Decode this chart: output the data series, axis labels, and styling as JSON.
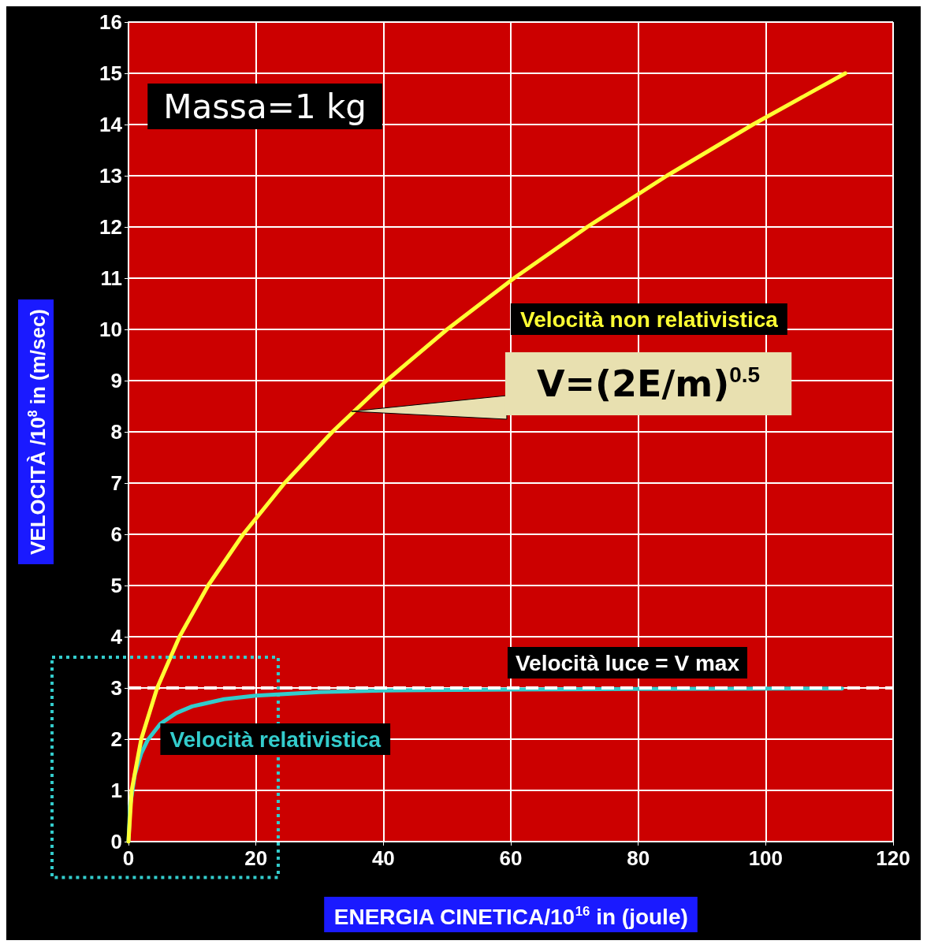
{
  "chart_data": {
    "type": "line",
    "xlabel": "ENERGIA CINETICA/10$^{16}$ in (joule)",
    "ylabel": "VELOCITÀ /10$^{8}$ in (m/sec)",
    "xlim": [
      0,
      120
    ],
    "xticks": [
      0,
      20,
      40,
      60,
      80,
      100,
      120
    ],
    "ylim": [
      0,
      16
    ],
    "yticks": [
      0,
      1,
      2,
      3,
      4,
      5,
      6,
      7,
      8,
      9,
      10,
      11,
      12,
      13,
      14,
      15,
      16
    ],
    "grid": true,
    "legend": false,
    "marker": "none",
    "series": [
      {
        "name": "Velocità non relativistica",
        "color": "#ffff33",
        "x": [
          0,
          0.5,
          2,
          4.5,
          8,
          12.5,
          18,
          24.5,
          32,
          40.5,
          50,
          60.5,
          72,
          84.5,
          98,
          112.5
        ],
        "values": [
          0,
          1,
          2,
          3,
          4,
          5,
          6,
          7,
          8,
          9,
          10,
          11,
          12,
          13,
          14,
          15
        ]
      },
      {
        "name": "Velocità relativistica",
        "color": "#33cccc",
        "x": [
          0,
          0.25,
          1,
          2,
          3,
          5,
          7.5,
          10,
          15,
          20,
          30,
          40,
          60,
          80,
          112
        ],
        "values": [
          0,
          0.69,
          1.31,
          1.72,
          1.98,
          2.3,
          2.51,
          2.64,
          2.78,
          2.85,
          2.92,
          2.95,
          2.97,
          2.98,
          2.99
        ]
      }
    ],
    "ref_lines": [
      {
        "axis": "y",
        "value": 3,
        "label": "Velocità luce = V max",
        "color": "#ffffff",
        "line_style": "dashed"
      }
    ],
    "annotations": [
      "Massa=1 kg",
      {
        "text": "V=(2E/m)$^{0.5}$",
        "x": 35,
        "y": 8.4
      }
    ]
  }
}
